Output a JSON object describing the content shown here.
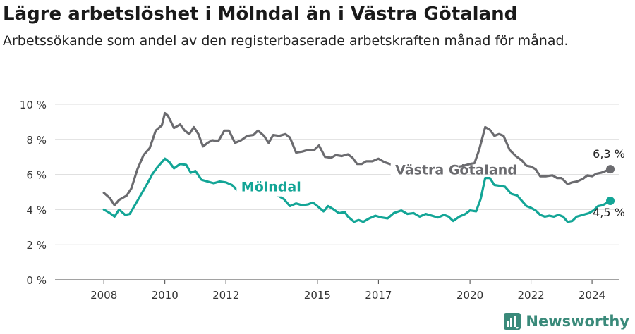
{
  "title": "Lägre arbetslöshet i Mölndal än i Västra Götaland",
  "subtitle": "Arbetssökande som andel av den registerbaserade arbetskraften månad för månad.",
  "brand": {
    "name": "Newsworthy",
    "logo": "newsworthy-logo-icon"
  },
  "colors": {
    "vg": "#6b6b6f",
    "molndal": "#13a596",
    "grid": "#dcdcdc",
    "axis": "#444444"
  },
  "chart_data": {
    "type": "line",
    "title": "Lägre arbetslöshet i Mölndal än i Västra Götaland",
    "ylabel": "",
    "xlabel": "",
    "ylim": [
      0,
      10
    ],
    "xlim": [
      2006.4,
      2024.9
    ],
    "y_ticks": [
      0,
      2,
      4,
      6,
      8,
      10
    ],
    "y_tick_labels": [
      "0 %",
      "2 %",
      "4 %",
      "6 %",
      "8 %",
      "10 %"
    ],
    "x_ticks": [
      2008,
      2010,
      2012,
      2015,
      2017,
      2020,
      2022,
      2024
    ],
    "x_tick_labels": [
      "2008",
      "2010",
      "2012",
      "2015",
      "2017",
      "2020",
      "2022",
      "2024"
    ],
    "grid": true,
    "series": [
      {
        "name": "Västra Götaland",
        "color": "#6b6b6f",
        "end_label": "6,3 %",
        "points": [
          [
            2008.0,
            4.95
          ],
          [
            2008.2,
            4.65
          ],
          [
            2008.35,
            4.25
          ],
          [
            2008.5,
            4.55
          ],
          [
            2008.75,
            4.8
          ],
          [
            2008.9,
            5.2
          ],
          [
            2009.1,
            6.3
          ],
          [
            2009.3,
            7.1
          ],
          [
            2009.5,
            7.5
          ],
          [
            2009.7,
            8.5
          ],
          [
            2009.9,
            8.8
          ],
          [
            2010.0,
            9.5
          ],
          [
            2010.1,
            9.35
          ],
          [
            2010.3,
            8.65
          ],
          [
            2010.5,
            8.85
          ],
          [
            2010.65,
            8.5
          ],
          [
            2010.8,
            8.3
          ],
          [
            2010.95,
            8.7
          ],
          [
            2011.1,
            8.3
          ],
          [
            2011.25,
            7.6
          ],
          [
            2011.4,
            7.8
          ],
          [
            2011.55,
            7.95
          ],
          [
            2011.75,
            7.9
          ],
          [
            2011.95,
            8.5
          ],
          [
            2012.1,
            8.5
          ],
          [
            2012.3,
            7.8
          ],
          [
            2012.5,
            7.95
          ],
          [
            2012.7,
            8.2
          ],
          [
            2012.9,
            8.25
          ],
          [
            2013.05,
            8.5
          ],
          [
            2013.25,
            8.2
          ],
          [
            2013.4,
            7.8
          ],
          [
            2013.55,
            8.25
          ],
          [
            2013.75,
            8.2
          ],
          [
            2013.95,
            8.3
          ],
          [
            2014.1,
            8.1
          ],
          [
            2014.3,
            7.25
          ],
          [
            2014.5,
            7.3
          ],
          [
            2014.7,
            7.4
          ],
          [
            2014.9,
            7.4
          ],
          [
            2015.05,
            7.65
          ],
          [
            2015.25,
            7.0
          ],
          [
            2015.45,
            6.95
          ],
          [
            2015.6,
            7.1
          ],
          [
            2015.8,
            7.05
          ],
          [
            2016.0,
            7.15
          ],
          [
            2016.15,
            6.95
          ],
          [
            2016.3,
            6.6
          ],
          [
            2016.45,
            6.6
          ],
          [
            2016.6,
            6.75
          ],
          [
            2016.8,
            6.75
          ],
          [
            2017.0,
            6.9
          ],
          [
            2017.2,
            6.7
          ],
          [
            2017.45,
            6.55
          ],
          [
            2017.65,
            6.45
          ],
          [
            2018.0,
            6.4
          ],
          [
            2018.3,
            6.45
          ],
          [
            2018.6,
            6.4
          ],
          [
            2018.9,
            6.4
          ],
          [
            2019.2,
            6.35
          ],
          [
            2019.5,
            6.4
          ],
          [
            2019.8,
            6.5
          ],
          [
            2020.0,
            6.6
          ],
          [
            2020.15,
            6.65
          ],
          [
            2020.3,
            7.4
          ],
          [
            2020.5,
            8.7
          ],
          [
            2020.65,
            8.55
          ],
          [
            2020.8,
            8.2
          ],
          [
            2020.95,
            8.3
          ],
          [
            2021.1,
            8.2
          ],
          [
            2021.3,
            7.4
          ],
          [
            2021.5,
            7.05
          ],
          [
            2021.7,
            6.8
          ],
          [
            2021.85,
            6.5
          ],
          [
            2022.0,
            6.45
          ],
          [
            2022.15,
            6.3
          ],
          [
            2022.3,
            5.9
          ],
          [
            2022.5,
            5.9
          ],
          [
            2022.7,
            5.95
          ],
          [
            2022.85,
            5.8
          ],
          [
            2023.0,
            5.8
          ],
          [
            2023.2,
            5.45
          ],
          [
            2023.35,
            5.55
          ],
          [
            2023.5,
            5.6
          ],
          [
            2023.7,
            5.75
          ],
          [
            2023.85,
            5.95
          ],
          [
            2024.0,
            5.9
          ],
          [
            2024.15,
            6.05
          ],
          [
            2024.3,
            6.1
          ],
          [
            2024.45,
            6.2
          ],
          [
            2024.6,
            6.3
          ]
        ]
      },
      {
        "name": "Mölndal",
        "color": "#13a596",
        "end_label": "4,5 %",
        "points": [
          [
            2008.0,
            4.0
          ],
          [
            2008.2,
            3.8
          ],
          [
            2008.35,
            3.6
          ],
          [
            2008.5,
            4.0
          ],
          [
            2008.7,
            3.7
          ],
          [
            2008.85,
            3.75
          ],
          [
            2009.0,
            4.2
          ],
          [
            2009.2,
            4.8
          ],
          [
            2009.4,
            5.4
          ],
          [
            2009.6,
            6.05
          ],
          [
            2009.75,
            6.4
          ],
          [
            2010.0,
            6.9
          ],
          [
            2010.15,
            6.7
          ],
          [
            2010.3,
            6.35
          ],
          [
            2010.5,
            6.6
          ],
          [
            2010.7,
            6.55
          ],
          [
            2010.85,
            6.1
          ],
          [
            2011.0,
            6.2
          ],
          [
            2011.2,
            5.7
          ],
          [
            2011.4,
            5.6
          ],
          [
            2011.6,
            5.5
          ],
          [
            2011.8,
            5.6
          ],
          [
            2012.0,
            5.55
          ],
          [
            2012.2,
            5.4
          ],
          [
            2012.4,
            5.05
          ],
          [
            2012.55,
            5.3
          ],
          [
            2012.75,
            5.3
          ],
          [
            2013.0,
            5.2
          ],
          [
            2013.3,
            5.0
          ],
          [
            2013.6,
            4.9
          ],
          [
            2013.9,
            4.6
          ],
          [
            2014.1,
            4.2
          ],
          [
            2014.3,
            4.35
          ],
          [
            2014.5,
            4.25
          ],
          [
            2014.7,
            4.3
          ],
          [
            2014.85,
            4.4
          ],
          [
            2015.0,
            4.2
          ],
          [
            2015.2,
            3.9
          ],
          [
            2015.35,
            4.2
          ],
          [
            2015.5,
            4.05
          ],
          [
            2015.7,
            3.8
          ],
          [
            2015.9,
            3.85
          ],
          [
            2016.0,
            3.6
          ],
          [
            2016.2,
            3.3
          ],
          [
            2016.35,
            3.4
          ],
          [
            2016.5,
            3.3
          ],
          [
            2016.7,
            3.5
          ],
          [
            2016.9,
            3.65
          ],
          [
            2017.1,
            3.55
          ],
          [
            2017.3,
            3.5
          ],
          [
            2017.5,
            3.8
          ],
          [
            2017.75,
            3.95
          ],
          [
            2017.95,
            3.75
          ],
          [
            2018.15,
            3.8
          ],
          [
            2018.35,
            3.6
          ],
          [
            2018.55,
            3.75
          ],
          [
            2018.75,
            3.65
          ],
          [
            2018.95,
            3.55
          ],
          [
            2019.15,
            3.7
          ],
          [
            2019.3,
            3.6
          ],
          [
            2019.45,
            3.35
          ],
          [
            2019.65,
            3.6
          ],
          [
            2019.85,
            3.75
          ],
          [
            2020.0,
            3.95
          ],
          [
            2020.2,
            3.9
          ],
          [
            2020.35,
            4.6
          ],
          [
            2020.5,
            5.8
          ],
          [
            2020.65,
            5.8
          ],
          [
            2020.8,
            5.4
          ],
          [
            2021.0,
            5.35
          ],
          [
            2021.15,
            5.3
          ],
          [
            2021.35,
            4.9
          ],
          [
            2021.55,
            4.8
          ],
          [
            2021.7,
            4.5
          ],
          [
            2021.85,
            4.2
          ],
          [
            2022.0,
            4.1
          ],
          [
            2022.15,
            3.95
          ],
          [
            2022.3,
            3.7
          ],
          [
            2022.45,
            3.6
          ],
          [
            2022.6,
            3.65
          ],
          [
            2022.75,
            3.6
          ],
          [
            2022.9,
            3.7
          ],
          [
            2023.05,
            3.6
          ],
          [
            2023.2,
            3.3
          ],
          [
            2023.35,
            3.35
          ],
          [
            2023.5,
            3.6
          ],
          [
            2023.7,
            3.7
          ],
          [
            2023.9,
            3.8
          ],
          [
            2024.05,
            3.95
          ],
          [
            2024.2,
            4.2
          ],
          [
            2024.35,
            4.25
          ],
          [
            2024.5,
            4.4
          ],
          [
            2024.6,
            4.5
          ]
        ]
      }
    ]
  }
}
